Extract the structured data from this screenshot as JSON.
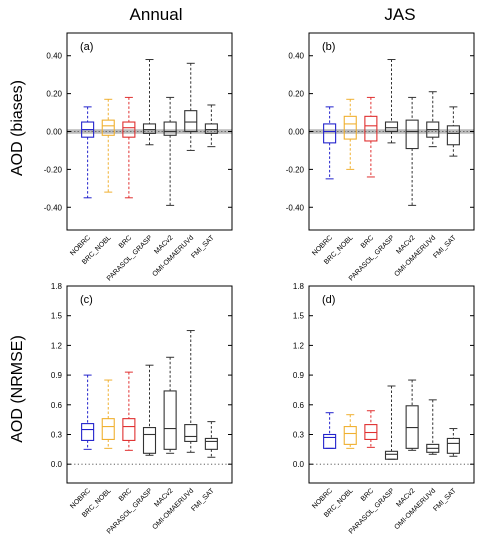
{
  "column_titles": [
    "Annual",
    "JAS"
  ],
  "row_labels": [
    "AOD (biases)",
    "AOD (NRMSE)"
  ],
  "colors": {
    "NOBRC": "#2222cc",
    "BRC_NOBL": "#f0b030",
    "BRC": "#e03030",
    "default": "#333333",
    "zero_band": "#bbbbbb"
  },
  "chart_data": [
    {
      "type": "boxplot",
      "panel": "(a)",
      "col": 0,
      "row": 0,
      "yticks": [
        "-0.40",
        "-0.20",
        "0.00",
        "0.20",
        "0.40"
      ],
      "ylim": [
        -0.52,
        0.52
      ],
      "zero_line": "band",
      "categories": [
        "NOBRC",
        "BRC_NOBL",
        "BRC",
        "PARASOL_GRASP",
        "MACv2",
        "OMI-OMAERUVd",
        "FMI_SAT"
      ],
      "boxes": [
        {
          "min": -0.35,
          "q1": -0.03,
          "median": 0.01,
          "q3": 0.05,
          "max": 0.13
        },
        {
          "min": -0.32,
          "q1": -0.02,
          "median": 0.03,
          "q3": 0.06,
          "max": 0.17
        },
        {
          "min": -0.35,
          "q1": -0.03,
          "median": 0.02,
          "q3": 0.05,
          "max": 0.18
        },
        {
          "min": -0.07,
          "q1": -0.01,
          "median": 0.01,
          "q3": 0.04,
          "max": 0.38
        },
        {
          "min": -0.39,
          "q1": -0.02,
          "median": 0.0,
          "q3": 0.05,
          "max": 0.18
        },
        {
          "min": -0.1,
          "q1": 0.0,
          "median": 0.05,
          "q3": 0.11,
          "max": 0.36
        },
        {
          "min": -0.08,
          "q1": -0.01,
          "median": 0.01,
          "q3": 0.04,
          "max": 0.14
        }
      ]
    },
    {
      "type": "boxplot",
      "panel": "(b)",
      "col": 1,
      "row": 0,
      "yticks": [
        "-0.40",
        "-0.20",
        "0.00",
        "0.20",
        "0.40"
      ],
      "ylim": [
        -0.52,
        0.52
      ],
      "zero_line": "band",
      "categories": [
        "NOBRC",
        "BRC_NOBL",
        "BRC",
        "PARASOL_GRASP",
        "MACv2",
        "OMI-OMAERUVd",
        "FMI_SAT"
      ],
      "boxes": [
        {
          "min": -0.25,
          "q1": -0.06,
          "median": 0.0,
          "q3": 0.04,
          "max": 0.13
        },
        {
          "min": -0.2,
          "q1": -0.04,
          "median": 0.04,
          "q3": 0.08,
          "max": 0.17
        },
        {
          "min": -0.24,
          "q1": -0.05,
          "median": 0.03,
          "q3": 0.08,
          "max": 0.18
        },
        {
          "min": -0.06,
          "q1": 0.0,
          "median": 0.02,
          "q3": 0.05,
          "max": 0.38
        },
        {
          "min": -0.39,
          "q1": -0.09,
          "median": 0.0,
          "q3": 0.06,
          "max": 0.18
        },
        {
          "min": -0.08,
          "q1": -0.03,
          "median": 0.01,
          "q3": 0.05,
          "max": 0.21
        },
        {
          "min": -0.13,
          "q1": -0.07,
          "median": -0.01,
          "q3": 0.03,
          "max": 0.13
        }
      ]
    },
    {
      "type": "boxplot",
      "panel": "(c)",
      "col": 0,
      "row": 1,
      "yticks": [
        "0.0",
        "0.3",
        "0.6",
        "0.9",
        "1.2",
        "1.5",
        "1.8"
      ],
      "ylim": [
        -0.19,
        1.8
      ],
      "zero_line": "dotted",
      "categories": [
        "NOBRC",
        "BRC_NOBL",
        "BRC",
        "PARASOL_GRASP",
        "MACv2",
        "OMI-OMAERUVd",
        "FMI_SAT"
      ],
      "boxes": [
        {
          "min": 0.15,
          "q1": 0.24,
          "median": 0.35,
          "q3": 0.41,
          "max": 0.9
        },
        {
          "min": 0.16,
          "q1": 0.25,
          "median": 0.38,
          "q3": 0.46,
          "max": 0.85
        },
        {
          "min": 0.14,
          "q1": 0.24,
          "median": 0.38,
          "q3": 0.46,
          "max": 0.93
        },
        {
          "min": 0.09,
          "q1": 0.11,
          "median": 0.3,
          "q3": 0.37,
          "max": 1.0
        },
        {
          "min": 0.11,
          "q1": 0.15,
          "median": 0.36,
          "q3": 0.74,
          "max": 1.08
        },
        {
          "min": 0.12,
          "q1": 0.23,
          "median": 0.28,
          "q3": 0.4,
          "max": 1.35
        },
        {
          "min": 0.07,
          "q1": 0.15,
          "median": 0.23,
          "q3": 0.26,
          "max": 0.43
        }
      ]
    },
    {
      "type": "boxplot",
      "panel": "(d)",
      "col": 1,
      "row": 1,
      "yticks": [
        "0.0",
        "0.3",
        "0.6",
        "0.9",
        "1.2",
        "1.5",
        "1.8"
      ],
      "ylim": [
        -0.19,
        1.8
      ],
      "zero_line": "dotted",
      "categories": [
        "NOBRC",
        "BRC_NOBL",
        "BRC",
        "PARASOL_GRASP",
        "MACv2",
        "OMI-OMAERUVd",
        "FMI_SAT"
      ],
      "boxes": [
        {
          "min": 0.16,
          "q1": 0.16,
          "median": 0.27,
          "q3": 0.3,
          "max": 0.52
        },
        {
          "min": 0.16,
          "q1": 0.2,
          "median": 0.31,
          "q3": 0.38,
          "max": 0.5
        },
        {
          "min": 0.17,
          "q1": 0.25,
          "median": 0.32,
          "q3": 0.4,
          "max": 0.54
        },
        {
          "min": 0.05,
          "q1": 0.05,
          "median": 0.1,
          "q3": 0.13,
          "max": 0.79
        },
        {
          "min": 0.14,
          "q1": 0.16,
          "median": 0.37,
          "q3": 0.59,
          "max": 0.85
        },
        {
          "min": 0.1,
          "q1": 0.12,
          "median": 0.16,
          "q3": 0.2,
          "max": 0.65
        },
        {
          "min": 0.08,
          "q1": 0.11,
          "median": 0.21,
          "q3": 0.26,
          "max": 0.36
        }
      ]
    }
  ]
}
